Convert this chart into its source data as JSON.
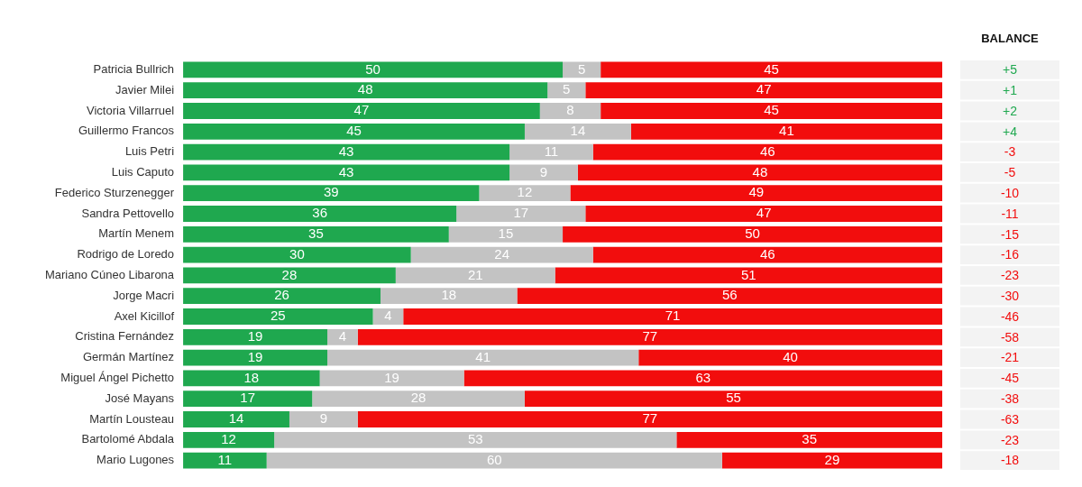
{
  "chart_data": {
    "type": "bar",
    "orientation": "horizontal",
    "stacked": true,
    "data_labels": true,
    "grid": false,
    "legend": false,
    "tick_labels": "y",
    "xlim": [
      0,
      100
    ],
    "categories": [
      "Patricia Bullrich",
      "Javier Milei",
      "Victoria Villarruel",
      "Guillermo Francos",
      "Luis Petri",
      "Luis Caputo",
      "Federico Sturzenegger",
      "Sandra Pettovello",
      "Martín Menem",
      "Rodrigo de Loredo",
      "Mariano Cúneo Libarona",
      "Jorge Macri",
      "Axel Kicillof",
      "Cristina Fernández",
      "Germán Martínez",
      "Miguel Ángel Pichetto",
      "José Mayans",
      "Martín Lousteau",
      "Bartolomé Abdala",
      "Mario Lugones"
    ],
    "series": [
      {
        "color": "#1fa84f",
        "values": [
          50,
          48,
          47,
          45,
          43,
          43,
          39,
          36,
          35,
          30,
          28,
          26,
          25,
          19,
          19,
          18,
          17,
          14,
          12,
          11
        ]
      },
      {
        "color": "#c3c3c3",
        "values": [
          5,
          5,
          8,
          14,
          11,
          9,
          12,
          17,
          15,
          24,
          21,
          18,
          4,
          4,
          41,
          19,
          28,
          9,
          53,
          60
        ]
      },
      {
        "color": "#f20d0d",
        "values": [
          45,
          47,
          45,
          41,
          46,
          48,
          49,
          47,
          50,
          46,
          51,
          56,
          71,
          77,
          40,
          63,
          55,
          77,
          35,
          29
        ]
      }
    ],
    "annotations": [
      "BALANCE",
      "+5",
      "+1",
      "+2",
      "+4",
      "-3",
      "-5",
      "-10",
      "-11",
      "-15",
      "-16",
      "-23",
      "-30",
      "-46",
      "-58",
      "-21",
      "-45",
      "-38",
      "-63",
      "-23",
      "-18"
    ]
  }
}
